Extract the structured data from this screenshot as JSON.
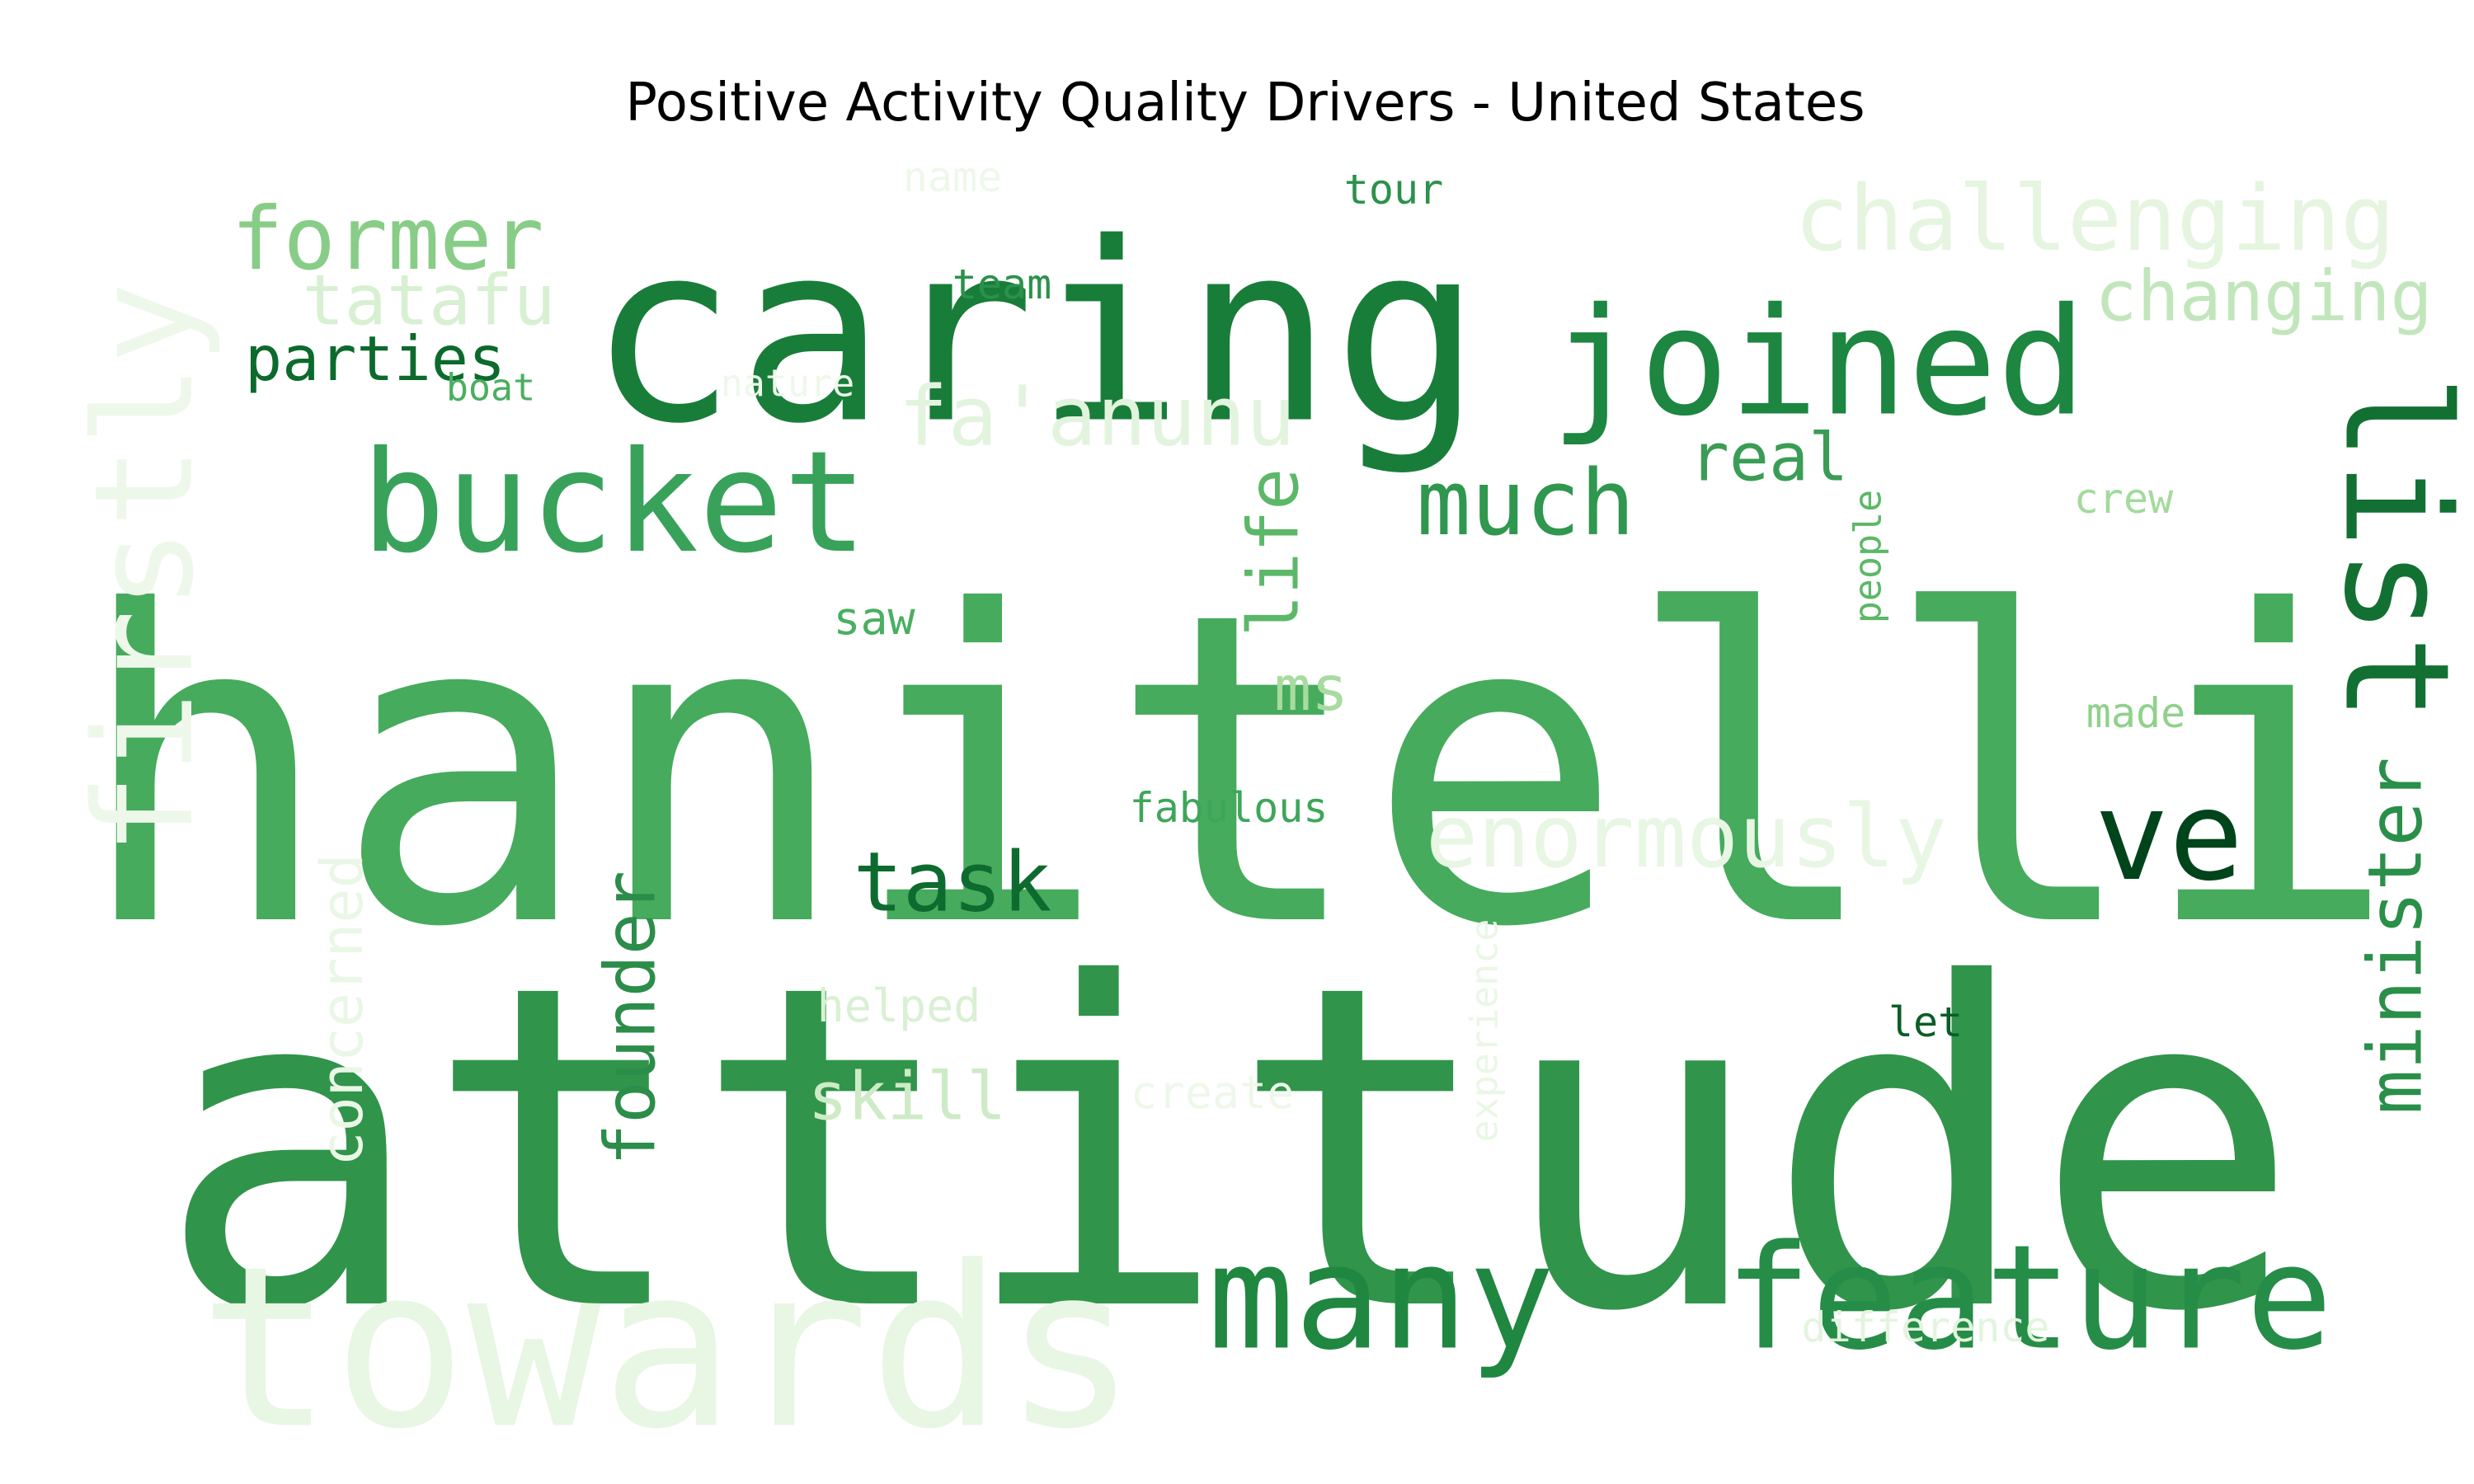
{
  "title": "Positive Activity Quality Drivers - United States",
  "words": [
    {
      "text": "hanitelli",
      "color": "#46ab5d"
    },
    {
      "text": "attitude",
      "color": "#31944b"
    },
    {
      "text": "caring",
      "color": "#197d3a"
    },
    {
      "text": "towards",
      "color": "#e8f6e4"
    },
    {
      "text": "many",
      "color": "#1f8740"
    },
    {
      "text": "feature",
      "color": "#258d47"
    },
    {
      "text": "joined",
      "color": "#1d8640"
    },
    {
      "text": "bucket",
      "color": "#38a25a"
    },
    {
      "text": "list",
      "color": "#137033"
    },
    {
      "text": "firstly",
      "color": "#eef8ea"
    },
    {
      "text": "former",
      "color": "#88cd87"
    },
    {
      "text": "challenging",
      "color": "#e5f5e0"
    },
    {
      "text": "changing",
      "color": "#c2e6bb"
    },
    {
      "text": "fa'anunu",
      "color": "#e3f4de"
    },
    {
      "text": "tatafu",
      "color": "#d8f0d2"
    },
    {
      "text": "parties",
      "color": "#0c6a2c"
    },
    {
      "text": "much",
      "color": "#2f974e"
    },
    {
      "text": "real",
      "color": "#3b9c56"
    },
    {
      "text": "ve",
      "color": "#00441b"
    },
    {
      "text": "enormously",
      "color": "#e8f6e4"
    },
    {
      "text": "minister",
      "color": "#2a8f49"
    },
    {
      "text": "task",
      "color": "#0e6b2f"
    },
    {
      "text": "founder",
      "color": "#2b8d49"
    },
    {
      "text": "life",
      "color": "#5cb868"
    },
    {
      "text": "ms",
      "color": "#a7dba0"
    },
    {
      "text": "saw",
      "color": "#4aaf61"
    },
    {
      "text": "concerned",
      "color": "#eaf7e6"
    },
    {
      "text": "skill",
      "color": "#cdebc6"
    },
    {
      "text": "helped",
      "color": "#d9f0d3"
    },
    {
      "text": "create",
      "color": "#eef8ea"
    },
    {
      "text": "experience",
      "color": "#eaf7e6"
    },
    {
      "text": "difference",
      "color": "#e3f4de"
    },
    {
      "text": "let",
      "color": "#0a5e27"
    },
    {
      "text": "fabulous",
      "color": "#3da65a"
    },
    {
      "text": "people",
      "color": "#5cb868"
    },
    {
      "text": "crew",
      "color": "#a3da9d"
    },
    {
      "text": "made",
      "color": "#8fd18b"
    },
    {
      "text": "tour",
      "color": "#2c914b"
    },
    {
      "text": "team",
      "color": "#2c914b"
    },
    {
      "text": "name",
      "color": "#eef8ea"
    },
    {
      "text": "boat",
      "color": "#4aaf61"
    },
    {
      "text": "nature",
      "color": "#eef8ea"
    }
  ]
}
